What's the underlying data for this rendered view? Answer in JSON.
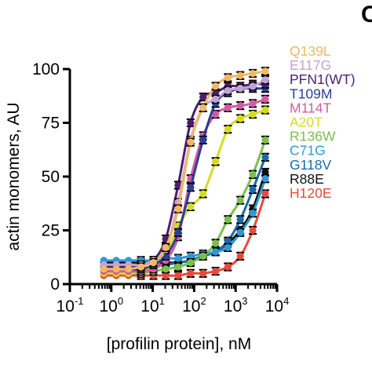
{
  "panel_label": "C",
  "chart_data": {
    "type": "line",
    "xscale": "log",
    "xlabel": "[profilin protein], nM",
    "ylabel": "actin monomers, AU",
    "xlim": [
      0.1,
      10000
    ],
    "ylim": [
      0,
      100
    ],
    "xticks": [
      {
        "base": "10",
        "exp": "-1"
      },
      {
        "base": "10",
        "exp": "0"
      },
      {
        "base": "10",
        "exp": "1"
      },
      {
        "base": "10",
        "exp": "2"
      },
      {
        "base": "10",
        "exp": "3"
      },
      {
        "base": "10",
        "exp": "4"
      }
    ],
    "yticks": [
      "0",
      "25",
      "50",
      "75",
      "100"
    ],
    "x": [
      0.66,
      1.32,
      2.6,
      5.2,
      10.4,
      20.6,
      41,
      82,
      164,
      328,
      650,
      1300,
      2600,
      5200
    ],
    "legend_position": "right",
    "series": [
      {
        "name": "Q139L",
        "color": "#f3b764",
        "values": [
          7,
          7,
          7,
          8,
          10,
          17,
          35,
          66,
          82,
          92,
          96,
          97,
          98,
          99
        ]
      },
      {
        "name": "E117G",
        "color": "#c3a4d4",
        "values": [
          9,
          9,
          9,
          9,
          11,
          16,
          38,
          67,
          82,
          86,
          90,
          91,
          92,
          95
        ]
      },
      {
        "name": "PFN1(WT)",
        "color": "#4b1e6e",
        "values": [
          8,
          8,
          8,
          8,
          11,
          21,
          46,
          75,
          87,
          89,
          92,
          92,
          93,
          93
        ]
      },
      {
        "name": "T109M",
        "color": "#2c3e94",
        "values": [
          7,
          7,
          7,
          7,
          9,
          13,
          24,
          45,
          67,
          84,
          89,
          91,
          91,
          91
        ]
      },
      {
        "name": "M114T",
        "color": "#d45aa6",
        "values": [
          6,
          6,
          6,
          6,
          7,
          11,
          22,
          49,
          69,
          79,
          82,
          83,
          84,
          86
        ]
      },
      {
        "name": "A20T",
        "color": "#d5dc1d",
        "values": [
          5,
          5,
          5,
          6,
          8,
          14,
          27,
          36,
          42,
          57,
          72,
          77,
          79,
          81
        ]
      },
      {
        "name": "R136W",
        "color": "#7bc04a",
        "values": [
          5,
          5,
          5,
          5,
          6,
          7,
          8,
          10,
          13,
          19,
          30,
          39,
          51,
          67
        ]
      },
      {
        "name": "C71G",
        "color": "#2d9ad6",
        "values": [
          11,
          11,
          11,
          11,
          11,
          12,
          12,
          13,
          14,
          15,
          17,
          24,
          33,
          49
        ]
      },
      {
        "name": "G118V",
        "color": "#1b6aaa",
        "values": [
          9,
          9,
          9,
          9,
          9,
          9,
          10,
          11,
          13,
          15,
          20,
          30,
          44,
          59
        ]
      },
      {
        "name": "R88E",
        "color": "#111111",
        "values": [
          10,
          10,
          10,
          10,
          10,
          10,
          10,
          11,
          13,
          15,
          19,
          25,
          35,
          52
        ]
      },
      {
        "name": "H120E",
        "color": "#e74a3b",
        "values": [
          4,
          4,
          4,
          4,
          4,
          4,
          4,
          5,
          5,
          6,
          8,
          13,
          25,
          42
        ]
      }
    ]
  }
}
